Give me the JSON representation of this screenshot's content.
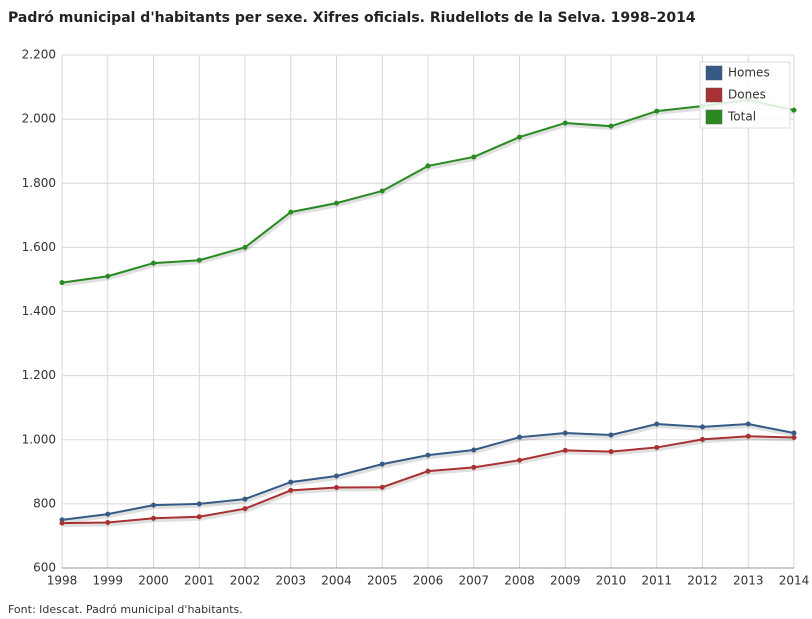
{
  "chart_data": {
    "type": "line",
    "title": "Padró municipal d'habitants per sexe. Xifres oficials. Riudellots de la Selva. 1998–2014",
    "source": "Font: Idescat. Padró municipal d'habitants.",
    "x": [
      1998,
      1999,
      2000,
      2001,
      2002,
      2003,
      2004,
      2005,
      2006,
      2007,
      2008,
      2009,
      2010,
      2011,
      2012,
      2013,
      2014
    ],
    "xlim": [
      1998,
      2014
    ],
    "xticks": [
      1998,
      1999,
      2000,
      2001,
      2002,
      2003,
      2004,
      2005,
      2006,
      2007,
      2008,
      2009,
      2010,
      2011,
      2012,
      2013,
      2014
    ],
    "ylim": [
      600,
      2200
    ],
    "yticks": [
      600,
      800,
      {
        "value": 1000,
        "label": "1.000"
      },
      {
        "value": 1200,
        "label": "1.200"
      },
      {
        "value": 1400,
        "label": "1.400"
      },
      {
        "value": 1600,
        "label": "1.600"
      },
      {
        "value": 1800,
        "label": "1.800"
      },
      {
        "value": 2000,
        "label": "2.000"
      },
      {
        "value": 2200,
        "label": "2.200"
      }
    ],
    "grid": true,
    "legend": "top-right",
    "series": [
      {
        "name": "Homes",
        "color": "#355a86",
        "values": [
          750,
          768,
          796,
          800,
          815,
          868,
          887,
          924,
          952,
          968,
          1008,
          1021,
          1015,
          1049,
          1040,
          1049,
          1021
        ]
      },
      {
        "name": "Dones",
        "color": "#a83232",
        "values": [
          740,
          742,
          755,
          760,
          785,
          842,
          851,
          852,
          902,
          914,
          936,
          967,
          963,
          976,
          1001,
          1011,
          1007
        ]
      },
      {
        "name": "Total",
        "color": "#2a8a22",
        "values": [
          1490,
          1510,
          1551,
          1560,
          1600,
          1710,
          1738,
          1776,
          1854,
          1882,
          1944,
          1988,
          1978,
          2025,
          2041,
          2060,
          2028
        ]
      }
    ]
  }
}
